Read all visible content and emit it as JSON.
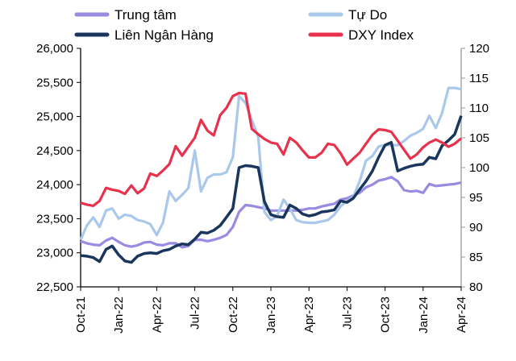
{
  "chart_data": {
    "type": "line",
    "title": "",
    "xlabel": "",
    "ylabel": "",
    "y2label": "",
    "ylim": [
      22500,
      26000
    ],
    "y2lim": [
      80,
      120
    ],
    "yticks": [
      "22,500",
      "23,000",
      "23,500",
      "24,000",
      "24,500",
      "25,000",
      "25,500",
      "26,000"
    ],
    "y2ticks": [
      "80",
      "85",
      "90",
      "95",
      "100",
      "105",
      "110",
      "115",
      "120"
    ],
    "xticks": [
      "Oct-21",
      "Jan-22",
      "Apr-22",
      "Jul-22",
      "Oct-22",
      "Jan-23",
      "Apr-23",
      "Jul-23",
      "Oct-23",
      "Jan-24",
      "Apr-24"
    ],
    "xlim": [
      "2021-10-01",
      "2024-04-01"
    ],
    "grid": false,
    "legend_placement": "top",
    "x": [
      "2021-10-01",
      "2021-10-16",
      "2021-11-01",
      "2021-11-16",
      "2021-12-01",
      "2021-12-16",
      "2022-01-01",
      "2022-01-16",
      "2022-02-01",
      "2022-02-16",
      "2022-03-01",
      "2022-03-16",
      "2022-04-01",
      "2022-04-16",
      "2022-05-01",
      "2022-05-16",
      "2022-06-01",
      "2022-06-16",
      "2022-07-01",
      "2022-07-16",
      "2022-08-01",
      "2022-08-16",
      "2022-09-01",
      "2022-09-16",
      "2022-10-01",
      "2022-10-16",
      "2022-11-01",
      "2022-11-16",
      "2022-12-01",
      "2022-12-16",
      "2023-01-01",
      "2023-01-16",
      "2023-02-01",
      "2023-02-16",
      "2023-03-01",
      "2023-03-16",
      "2023-04-01",
      "2023-04-16",
      "2023-05-01",
      "2023-05-16",
      "2023-06-01",
      "2023-06-16",
      "2023-07-01",
      "2023-07-16",
      "2023-08-01",
      "2023-08-16",
      "2023-09-01",
      "2023-09-16",
      "2023-10-01",
      "2023-10-16",
      "2023-11-01",
      "2023-11-16",
      "2023-12-01",
      "2023-12-16",
      "2024-01-01",
      "2024-01-16",
      "2024-02-01",
      "2024-02-16",
      "2024-03-01",
      "2024-03-16",
      "2024-04-01"
    ],
    "series": [
      {
        "name": "Trung tâm",
        "axis": "left",
        "color": "#9a8ae2",
        "values": [
          23170,
          23140,
          23120,
          23110,
          23180,
          23220,
          23160,
          23110,
          23090,
          23110,
          23150,
          23160,
          23120,
          23110,
          23140,
          23140,
          23080,
          23100,
          23190,
          23190,
          23170,
          23190,
          23220,
          23260,
          23380,
          23600,
          23700,
          23690,
          23670,
          23650,
          23620,
          23620,
          23620,
          23620,
          23620,
          23630,
          23650,
          23650,
          23680,
          23700,
          23720,
          23780,
          23800,
          23840,
          23880,
          23960,
          24000,
          24060,
          24080,
          24110,
          24050,
          23920,
          23900,
          23910,
          23880,
          24010,
          23980,
          23990,
          24000,
          24010,
          24030
        ]
      },
      {
        "name": "Tự Do",
        "axis": "left",
        "color": "#a9c8ea",
        "values": [
          23190,
          23400,
          23520,
          23380,
          23620,
          23650,
          23500,
          23560,
          23540,
          23480,
          23460,
          23420,
          23260,
          23440,
          23900,
          23760,
          23850,
          23950,
          24500,
          23900,
          24100,
          24150,
          24150,
          24180,
          24400,
          25300,
          25200,
          24950,
          24700,
          23600,
          23480,
          23540,
          23780,
          23650,
          23480,
          23450,
          23440,
          23440,
          23460,
          23480,
          23560,
          23680,
          23760,
          23820,
          24050,
          24350,
          24420,
          24560,
          24580,
          24580,
          24580,
          24640,
          24720,
          24760,
          24820,
          25010,
          24830,
          25050,
          25420,
          25420,
          25400
        ]
      },
      {
        "name": "Liên Ngân Hàng",
        "axis": "left",
        "color": "#1b365d",
        "values": [
          22960,
          22950,
          22930,
          22870,
          23050,
          23100,
          22970,
          22880,
          22860,
          22950,
          22990,
          23000,
          22990,
          23030,
          23050,
          23100,
          23130,
          23120,
          23200,
          23300,
          23290,
          23330,
          23400,
          23520,
          23650,
          24250,
          24280,
          24270,
          24250,
          23750,
          23560,
          23530,
          23520,
          23700,
          23650,
          23570,
          23540,
          23560,
          23600,
          23610,
          23630,
          23760,
          23740,
          23800,
          23930,
          24050,
          24200,
          24400,
          24580,
          24620,
          24200,
          24240,
          24270,
          24290,
          24300,
          24400,
          24380,
          24570,
          24650,
          24740,
          25010
        ]
      },
      {
        "name": "DXY Index",
        "axis": "right",
        "color": "#e8314c",
        "values": [
          94.1,
          93.8,
          93.6,
          94.4,
          96.6,
          96.3,
          96.1,
          95.6,
          97.0,
          95.7,
          96.5,
          99.0,
          98.6,
          99.5,
          100.6,
          103.6,
          102.0,
          103.5,
          105.0,
          108.0,
          106.2,
          105.4,
          108.8,
          110.0,
          112.0,
          112.5,
          112.4,
          106.5,
          105.6,
          104.8,
          104.2,
          104.0,
          102.2,
          105.0,
          104.2,
          102.9,
          101.7,
          101.7,
          102.5,
          104.0,
          103.8,
          102.4,
          100.5,
          101.5,
          102.5,
          104.0,
          105.5,
          106.4,
          106.3,
          106.0,
          104.5,
          103.0,
          101.5,
          102.2,
          103.4,
          104.2,
          104.7,
          104.2,
          103.5,
          104.0,
          104.9
        ]
      }
    ]
  }
}
